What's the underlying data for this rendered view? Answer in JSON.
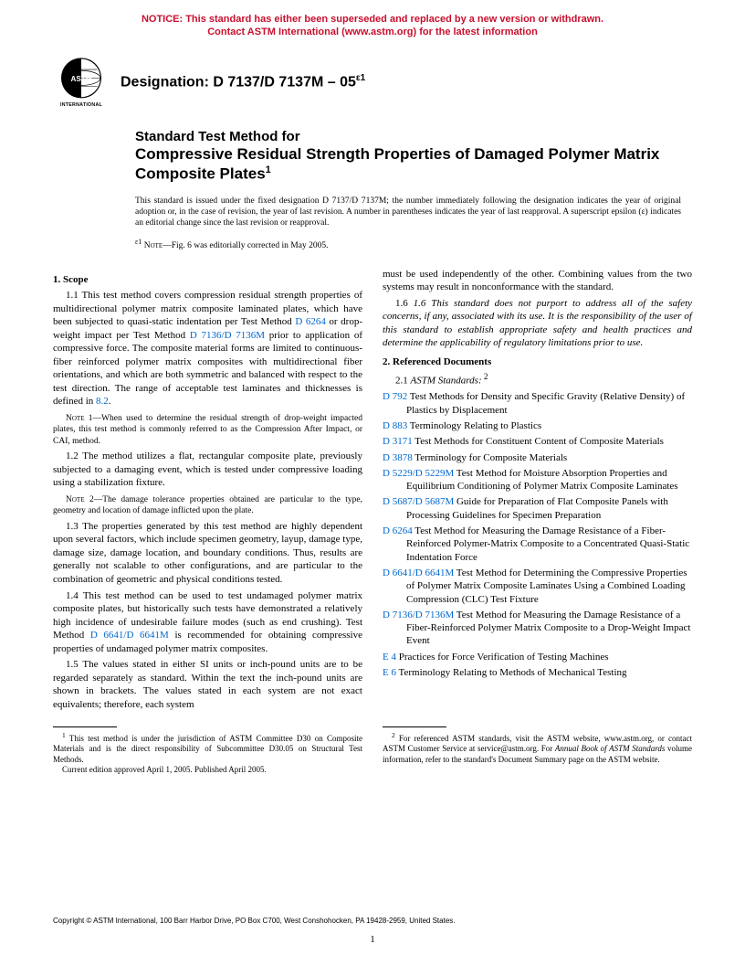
{
  "notice": {
    "line1": "NOTICE: This standard has either been superseded and replaced by a new version or withdrawn.",
    "line2": "Contact ASTM International (www.astm.org) for the latest information"
  },
  "designation": {
    "label": "Designation: D 7137/D 7137M – 05",
    "sup": "ε1"
  },
  "title": {
    "line1": "Standard Test Method for",
    "line2": "Compressive Residual Strength Properties of Damaged Polymer Matrix Composite Plates",
    "sup": "1"
  },
  "issuance": "This standard is issued under the fixed designation D 7137/D 7137M; the number immediately following the designation indicates the year of original adoption or, in the case of revision, the year of last revision. A number in parentheses indicates the year of last reapproval. A superscript epsilon (ε) indicates an editorial change since the last revision or reapproval.",
  "editorial": {
    "sup": "ε1",
    "noteLabel": "Note",
    "text": "—Fig. 6 was editorially corrected in May 2005."
  },
  "left": {
    "secHead": "1. Scope",
    "p11a": "1.1 This test method covers compression residual strength properties of multidirectional polymer matrix composite laminated plates, which have been subjected to quasi-static indentation per Test Method ",
    "link1": "D 6264",
    "p11b": " or drop-weight impact per Test Method ",
    "link2": "D 7136/D 7136M",
    "p11c": " prior to application of compressive force. The composite material forms are limited to continuous-fiber reinforced polymer matrix composites with multidirectional fiber orientations, and which are both symmetric and balanced with respect to the test direction. The range of acceptable test laminates and thicknesses is defined in ",
    "link3": "8.2",
    "p11d": ".",
    "note1Label": "Note",
    "note1": " 1—When used to determine the residual strength of drop-weight impacted plates, this test method is commonly referred to as the Compression After Impact, or CAI, method.",
    "p12": "1.2 The method utilizes a flat, rectangular composite plate, previously subjected to a damaging event, which is tested under compressive loading using a stabilization fixture.",
    "note2Label": "Note",
    "note2": " 2—The damage tolerance properties obtained are particular to the type, geometry and location of damage inflicted upon the plate.",
    "p13": "1.3 The properties generated by this test method are highly dependent upon several factors, which include specimen geometry, layup, damage type, damage size, damage location, and boundary conditions. Thus, results are generally not scalable to other configurations, and are particular to the combination of geometric and physical conditions tested.",
    "p14a": "1.4 This test method can be used to test undamaged polymer matrix composite plates, but historically such tests have demonstrated a relatively high incidence of undesirable failure modes (such as end crushing). Test Method ",
    "link4": "D 6641/D 6641M",
    "p14b": " is recommended for obtaining compressive properties of undamaged polymer matrix composites.",
    "p15": "1.5 The values stated in either SI units or inch-pound units are to be regarded separately as standard. Within the text the inch-pound units are shown in brackets. The values stated in each system are not exact equivalents; therefore, each system"
  },
  "right": {
    "cont": "must be used independently of the other. Combining values from the two systems may result in nonconformance with the standard.",
    "p16": "1.6 This standard does not purport to address all of the safety concerns, if any, associated with its use. It is the responsibility of the user of this standard to establish appropriate safety and health practices and determine the applicability of regulatory limitations prior to use.",
    "secHead": "2. Referenced Documents",
    "sub21a": "2.1 ",
    "sub21b": "ASTM Standards:",
    "sub21sup": " 2",
    "refs": [
      {
        "code": "D 792",
        "text": "  Test Methods for Density and Specific Gravity (Relative Density) of Plastics by Displacement"
      },
      {
        "code": "D 883",
        "text": "  Terminology Relating to Plastics"
      },
      {
        "code": "D 3171",
        "text": "  Test Methods for Constituent Content of Composite Materials"
      },
      {
        "code": "D 3878",
        "text": "  Terminology for Composite Materials"
      },
      {
        "code": "D 5229/D 5229M",
        "text": " Test Method for Moisture Absorption Properties and Equilibrium Conditioning of Polymer Matrix Composite Laminates"
      },
      {
        "code": "D 5687/D 5687M",
        "text": " Guide for Preparation of Flat Composite Panels with Processing Guidelines for Specimen Preparation"
      },
      {
        "code": "D 6264",
        "text": "  Test Method for Measuring the Damage Resistance of a Fiber-Reinforced Polymer-Matrix Composite to a Concentrated Quasi-Static Indentation Force"
      },
      {
        "code": "D 6641/D 6641M",
        "text": " Test Method for Determining the Compressive Properties of Polymer Matrix Composite Laminates Using a Combined Loading Compression (CLC) Test Fixture"
      },
      {
        "code": "D 7136/D 7136M",
        "text": " Test Method for Measuring the Damage Resistance of a Fiber-Reinforced Polymer Matrix Composite to a Drop-Weight Impact Event"
      },
      {
        "code": "E 4",
        "text": "  Practices for Force Verification of Testing Machines"
      },
      {
        "code": "E 6",
        "text": "  Terminology Relating to Methods of Mechanical Testing"
      }
    ]
  },
  "footnotes": {
    "fn1a": "This test method is under the jurisdiction of ASTM Committee D30 on Composite Materials and is the direct responsibility of Subcommittee D30.05 on Structural Test Methods.",
    "fn1b": "Current edition approved April 1, 2005. Published April 2005.",
    "fn2a": "For referenced ASTM standards, visit the ASTM website, www.astm.org, or contact ASTM Customer Service at service@astm.org. For ",
    "fn2b": "Annual Book of ASTM Standards",
    "fn2c": " volume information, refer to the standard's Document Summary page on the ASTM website."
  },
  "copyright": "Copyright © ASTM International, 100 Barr Harbor Drive, PO Box C700, West Conshohocken, PA 19428-2959, United States.",
  "pagenum": "1",
  "colors": {
    "notice": "#c8102e",
    "link": "#0066cc",
    "text": "#000000",
    "bg": "#ffffff"
  },
  "fonts": {
    "sans": "Arial, Helvetica, sans-serif",
    "serif": "Times New Roman, Times, serif"
  }
}
